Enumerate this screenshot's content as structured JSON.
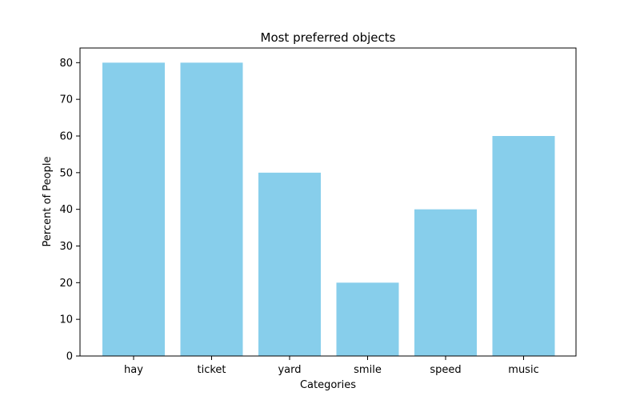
{
  "chart_data": {
    "type": "bar",
    "title": "Most preferred objects",
    "xlabel": "Categories",
    "ylabel": "Percent of People",
    "categories": [
      "hay",
      "ticket",
      "yard",
      "smile",
      "speed",
      "music"
    ],
    "values": [
      80,
      80,
      50,
      20,
      40,
      60
    ],
    "ylim": [
      0,
      80
    ],
    "yticks": [
      0,
      10,
      20,
      30,
      40,
      50,
      60,
      70,
      80
    ],
    "bar_color": "#87ceeb",
    "grid": false,
    "legend": "none"
  }
}
